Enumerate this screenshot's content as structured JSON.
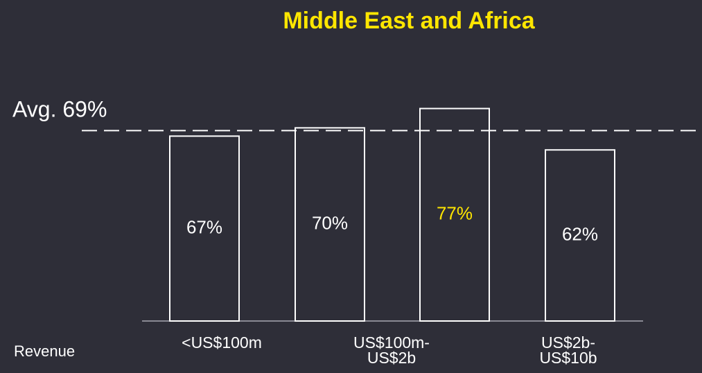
{
  "chart_data": {
    "type": "bar",
    "title": "Middle East and Africa",
    "xlabel": "Revenue",
    "categories": [
      "<US$100m",
      "US$100m-US$2b",
      null,
      "US$2b-US$10b"
    ],
    "values": [
      67,
      70,
      77,
      62
    ],
    "value_labels": [
      "67%",
      "70%",
      "77%",
      "62%"
    ],
    "value_label_colors": [
      "#ffffff",
      "#ffffff",
      "#ffe600",
      "#ffffff"
    ],
    "bar_outline_color": "#ffffff",
    "title_color": "#ffe600",
    "average": 69,
    "average_label": "Avg. 69%",
    "ylim": [
      0,
      100
    ]
  }
}
